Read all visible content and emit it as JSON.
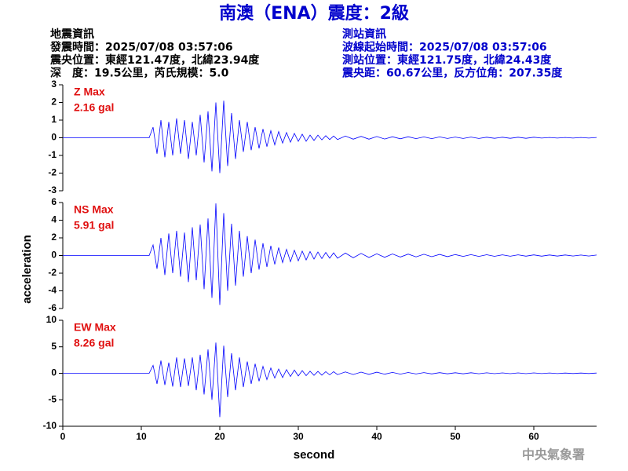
{
  "title": "南澳（ENA）震度：2級",
  "event_info": [
    "地震資訊",
    "發震時間：2025/07/08 03:57:06",
    "震央位置：東經121.47度，北緯23.94度",
    "深　度：19.5公里，芮氏規模：5.0"
  ],
  "station_info": [
    "測站資訊",
    "波線起始時間：2025/07/08 03:57:06",
    "測站位置：東經121.75度，北緯24.43度",
    "震央距：60.67公里，反方位角：207.35度"
  ],
  "y_label": "acceleration",
  "x_label": "second",
  "credit": "中央氣象署",
  "chart_data": [
    {
      "type": "line",
      "label": "Z Max",
      "max_label": "2.16 gal",
      "label_color": "#e01010",
      "xlim": [
        0,
        68
      ],
      "ylim": [
        -3,
        3
      ],
      "yticks": [
        -3,
        -2,
        -1,
        0,
        1,
        2,
        3
      ],
      "x": [
        0,
        11,
        11.5,
        12,
        12.5,
        13,
        13.5,
        14,
        14.5,
        15,
        15.5,
        16,
        16.5,
        17,
        17.5,
        18,
        18.5,
        19,
        19.5,
        20,
        20.5,
        21,
        21.5,
        22,
        22.5,
        23,
        23.5,
        24,
        24.5,
        25,
        25.5,
        26,
        26.5,
        27,
        27.5,
        28,
        28.5,
        29,
        29.5,
        30,
        30.5,
        31,
        31.5,
        32,
        32.5,
        33,
        33.5,
        34,
        34.5,
        35,
        36,
        37,
        38,
        39,
        40,
        41,
        42,
        43,
        44,
        45,
        46,
        47,
        48,
        49,
        50,
        51,
        52,
        53,
        54,
        55,
        56,
        57,
        58,
        59,
        60,
        61,
        62,
        63,
        64,
        65,
        66,
        67,
        68
      ],
      "series": [
        {
          "color": "#0000ff",
          "values": [
            0,
            0,
            0.6,
            -0.9,
            1.0,
            -1.1,
            0.9,
            -1.0,
            1.1,
            -0.9,
            1.0,
            -1.2,
            0.9,
            -1.0,
            1.3,
            -1.4,
            1.5,
            -1.9,
            2.0,
            -2.0,
            2.1,
            -1.6,
            1.4,
            -1.2,
            1.0,
            -0.8,
            0.9,
            -0.7,
            0.6,
            -0.6,
            0.5,
            -0.5,
            0.4,
            -0.4,
            0.35,
            -0.3,
            0.3,
            -0.25,
            0.25,
            -0.2,
            0.2,
            -0.2,
            0.15,
            -0.15,
            0.15,
            -0.12,
            0.12,
            -0.1,
            0.1,
            -0.1,
            0.1,
            -0.08,
            0.08,
            -0.08,
            0.07,
            -0.07,
            0.06,
            -0.06,
            0.06,
            -0.05,
            0.05,
            -0.05,
            0.05,
            -0.04,
            0.04,
            -0.04,
            0.04,
            -0.04,
            0.03,
            -0.03,
            0.03,
            -0.03,
            0.03,
            -0.03,
            0.03,
            -0.02,
            0.02,
            -0.02,
            0.02,
            -0.02,
            0.02,
            -0.02,
            0.02
          ]
        }
      ]
    },
    {
      "type": "line",
      "label": "NS Max",
      "max_label": "5.91 gal",
      "label_color": "#e01010",
      "xlim": [
        0,
        68
      ],
      "ylim": [
        -6,
        6
      ],
      "yticks": [
        -6,
        -4,
        -2,
        0,
        2,
        4,
        6
      ],
      "x": [
        0,
        11,
        11.5,
        12,
        12.5,
        13,
        13.5,
        14,
        14.5,
        15,
        15.5,
        16,
        16.5,
        17,
        17.5,
        18,
        18.5,
        19,
        19.5,
        20,
        20.5,
        21,
        21.5,
        22,
        22.5,
        23,
        23.5,
        24,
        24.5,
        25,
        25.5,
        26,
        26.5,
        27,
        27.5,
        28,
        28.5,
        29,
        29.5,
        30,
        30.5,
        31,
        31.5,
        32,
        32.5,
        33,
        33.5,
        34,
        34.5,
        35,
        36,
        37,
        38,
        39,
        40,
        41,
        42,
        43,
        44,
        45,
        46,
        47,
        48,
        49,
        50,
        51,
        52,
        53,
        54,
        55,
        56,
        57,
        58,
        59,
        60,
        61,
        62,
        63,
        64,
        65,
        66,
        67,
        68
      ],
      "series": [
        {
          "color": "#0000ff",
          "values": [
            0,
            0,
            1.2,
            -1.5,
            2.0,
            -2.2,
            2.5,
            -2.0,
            2.8,
            -2.4,
            2.6,
            -3.0,
            3.2,
            -2.8,
            3.5,
            -3.8,
            4.2,
            -4.8,
            5.9,
            -5.6,
            4.8,
            -4.0,
            3.6,
            -3.4,
            2.8,
            -2.4,
            2.2,
            -2.0,
            1.8,
            -1.6,
            1.4,
            -1.3,
            1.1,
            -1.0,
            0.9,
            -0.8,
            0.7,
            -0.7,
            0.6,
            -0.6,
            0.5,
            -0.5,
            0.45,
            -0.4,
            0.4,
            -0.35,
            0.35,
            -0.3,
            0.3,
            -0.3,
            0.28,
            -0.26,
            0.24,
            -0.22,
            0.2,
            -0.2,
            0.18,
            -0.17,
            0.16,
            -0.15,
            0.14,
            -0.13,
            0.12,
            -0.12,
            0.11,
            -0.1,
            0.1,
            -0.1,
            0.09,
            -0.09,
            0.08,
            -0.08,
            0.08,
            -0.07,
            0.07,
            -0.07,
            0.06,
            -0.06,
            0.06,
            -0.05,
            0.05,
            -0.05,
            0.05
          ]
        }
      ]
    },
    {
      "type": "line",
      "label": "EW Max",
      "max_label": "8.26 gal",
      "label_color": "#e01010",
      "xlim": [
        0,
        68
      ],
      "xticks": [
        0,
        10,
        20,
        30,
        40,
        50,
        60
      ],
      "ylim": [
        -10,
        10
      ],
      "yticks": [
        -10,
        -5,
        0,
        5,
        10
      ],
      "x": [
        0,
        11,
        11.5,
        12,
        12.5,
        13,
        13.5,
        14,
        14.5,
        15,
        15.5,
        16,
        16.5,
        17,
        17.5,
        18,
        18.5,
        19,
        19.5,
        20,
        20.5,
        21,
        21.5,
        22,
        22.5,
        23,
        23.5,
        24,
        24.5,
        25,
        25.5,
        26,
        26.5,
        27,
        27.5,
        28,
        28.5,
        29,
        29.5,
        30,
        30.5,
        31,
        31.5,
        32,
        32.5,
        33,
        33.5,
        34,
        34.5,
        35,
        36,
        37,
        38,
        39,
        40,
        41,
        42,
        43,
        44,
        45,
        46,
        47,
        48,
        49,
        50,
        51,
        52,
        53,
        54,
        55,
        56,
        57,
        58,
        59,
        60,
        61,
        62,
        63,
        64,
        65,
        66,
        67,
        68
      ],
      "series": [
        {
          "color": "#0000ff",
          "values": [
            0,
            0,
            1.5,
            -2.0,
            2.4,
            -2.2,
            2.0,
            -2.5,
            3.0,
            -2.6,
            2.8,
            -2.4,
            3.0,
            -3.2,
            3.5,
            -4.0,
            4.5,
            -5.0,
            5.8,
            -8.26,
            5.2,
            -4.5,
            3.8,
            -3.2,
            3.0,
            -2.6,
            2.2,
            -2.0,
            1.8,
            -1.5,
            1.3,
            -1.2,
            1.0,
            -0.9,
            0.8,
            -0.8,
            0.7,
            -0.6,
            0.6,
            -0.5,
            0.5,
            -0.45,
            0.4,
            -0.4,
            0.35,
            -0.35,
            0.3,
            -0.3,
            0.3,
            -0.25,
            0.25,
            -0.24,
            0.22,
            -0.2,
            0.2,
            -0.18,
            0.17,
            -0.16,
            0.15,
            -0.14,
            0.13,
            -0.12,
            0.12,
            -0.11,
            0.1,
            -0.1,
            0.1,
            -0.09,
            0.09,
            -0.08,
            0.08,
            -0.08,
            0.07,
            -0.07,
            0.07,
            -0.06,
            0.06,
            -0.06,
            0.05,
            -0.05,
            0.05,
            -0.05,
            0.05
          ]
        }
      ]
    }
  ]
}
